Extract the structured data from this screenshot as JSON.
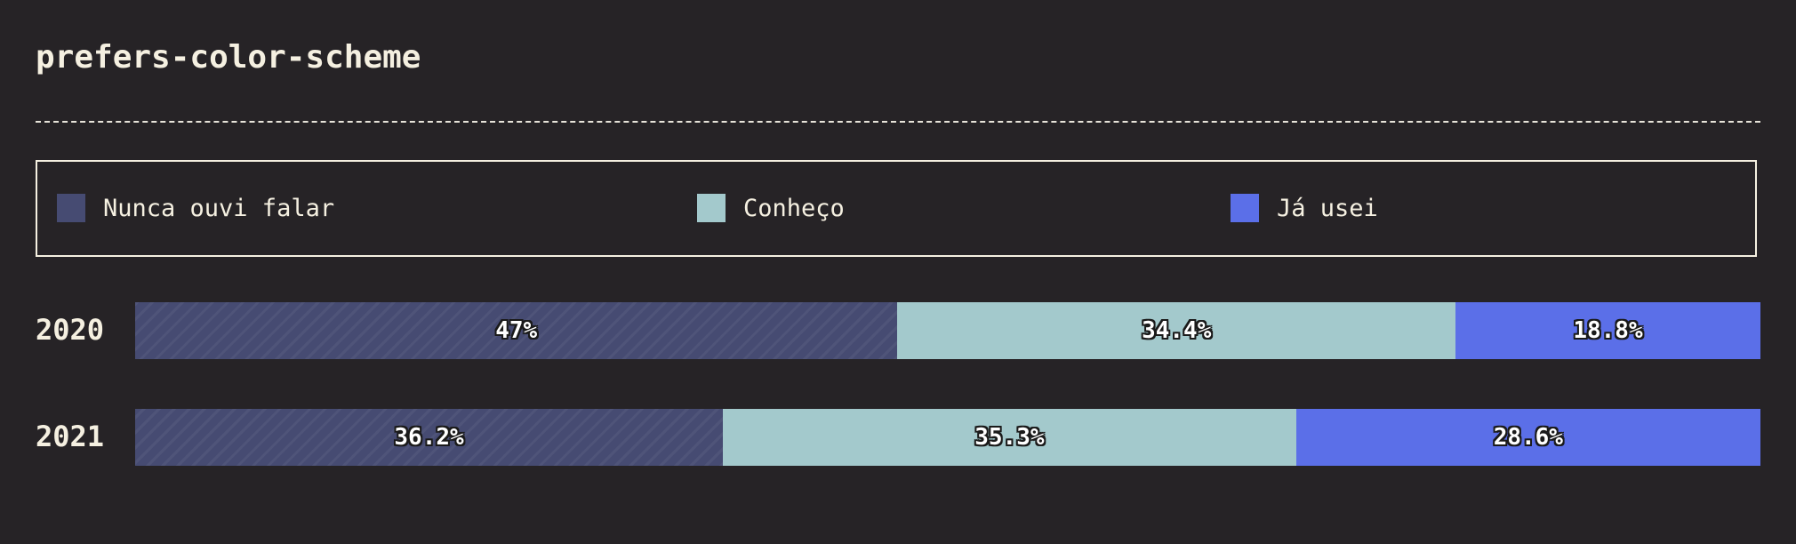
{
  "chart_data": {
    "type": "bar",
    "orientation": "horizontal",
    "stacked": true,
    "percent_stacked": true,
    "title": "prefers-color-scheme",
    "categories": [
      "2020",
      "2021"
    ],
    "series": [
      {
        "name": "Nunca ouvi falar",
        "color": "#464b72",
        "pattern": "diagonal-stripes",
        "values": [
          47,
          36.2
        ],
        "labels": [
          "47%",
          "36.2%"
        ]
      },
      {
        "name": "Conheço",
        "color": "#a3c9cc",
        "values": [
          34.4,
          35.3
        ],
        "labels": [
          "34.4%",
          "35.3%"
        ]
      },
      {
        "name": "Já usei",
        "color": "#5b6fe8",
        "values": [
          18.8,
          28.6
        ],
        "labels": [
          "18.8%",
          "28.6%"
        ]
      }
    ],
    "xlim": [
      0,
      100
    ],
    "grid": false,
    "legend": "top"
  },
  "colors": {
    "background": "#262326",
    "text": "#f5f0e1"
  }
}
